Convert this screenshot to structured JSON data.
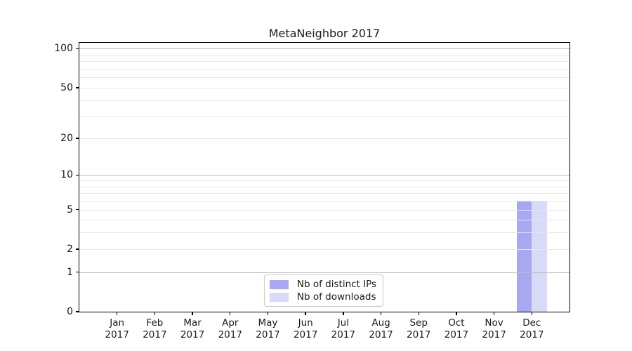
{
  "chart_data": {
    "type": "bar",
    "title": "MetaNeighbor 2017",
    "categories": [
      "Jan 2017",
      "Feb 2017",
      "Mar 2017",
      "Apr 2017",
      "May 2017",
      "Jun 2017",
      "Jul 2017",
      "Aug 2017",
      "Sep 2017",
      "Oct 2017",
      "Nov 2017",
      "Dec 2017"
    ],
    "series": [
      {
        "name": "Nb of distinct IPs",
        "color": "#a8a8f2",
        "values": [
          0,
          0,
          0,
          0,
          0,
          0,
          0,
          0,
          0,
          0,
          0,
          6
        ]
      },
      {
        "name": "Nb of downloads",
        "color": "#d9d9f8",
        "values": [
          0,
          0,
          0,
          0,
          0,
          0,
          0,
          0,
          0,
          0,
          0,
          6
        ]
      }
    ],
    "yticks": [
      0,
      1,
      2,
      5,
      10,
      20,
      50,
      100
    ],
    "minor_gridlines": [
      3,
      4,
      6,
      7,
      8,
      9,
      30,
      40,
      60,
      70,
      80,
      90
    ],
    "decade_gridlines": [
      1,
      10,
      100
    ],
    "ylim": [
      0,
      111
    ],
    "yscale": "log1p",
    "xlabel": "",
    "ylabel": "",
    "grid": true,
    "legend_position": "lower center",
    "colors": {
      "decade_grid": "#bdbdbd",
      "minor_grid": "#e7e7e7",
      "spine": "#000000",
      "text": "#1a1a1a",
      "background": "#ffffff"
    }
  }
}
